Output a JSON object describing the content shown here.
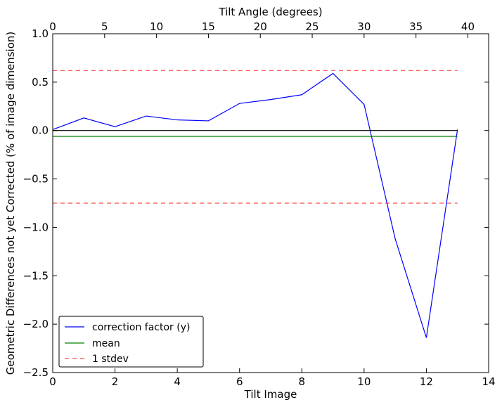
{
  "chart_data": {
    "type": "line",
    "title": "",
    "xlabel": "Tilt Image",
    "ylabel": "Geometric Differences not yet Corrected (% of image dimension)",
    "x2label": "Tilt Angle (degrees)",
    "xlim": [
      0,
      14
    ],
    "ylim": [
      -2.5,
      1.0
    ],
    "x2lim": [
      0,
      42
    ],
    "xticks": [
      "0",
      "2",
      "4",
      "6",
      "8",
      "10",
      "12",
      "14"
    ],
    "yticks": [
      "1.0",
      "0.5",
      "0.0",
      "−0.5",
      "−1.0",
      "−1.5",
      "−2.0",
      "−2.5"
    ],
    "x2ticks": [
      "0",
      "5",
      "10",
      "15",
      "20",
      "25",
      "30",
      "35",
      "40"
    ],
    "grid": false,
    "legend_position": "lower-left",
    "series": [
      {
        "name": "correction factor (y)",
        "color": "#0000ff",
        "style": "solid",
        "x": [
          0,
          1,
          2,
          3,
          4,
          5,
          6,
          7,
          8,
          9,
          10,
          11,
          12,
          13
        ],
        "y": [
          0.01,
          0.13,
          0.04,
          0.15,
          0.11,
          0.1,
          0.28,
          0.32,
          0.37,
          0.59,
          0.27,
          -1.12,
          -2.14,
          0.01
        ]
      },
      {
        "name": "mean",
        "color": "#008000",
        "style": "solid",
        "x": [
          0,
          13
        ],
        "y": [
          -0.06,
          -0.06
        ]
      },
      {
        "name": "1 stdev",
        "color": "#ff0000",
        "style": "dashed",
        "x": [
          0,
          13
        ],
        "y": [
          0.62,
          0.62
        ]
      },
      {
        "name": "",
        "color": "#ff0000",
        "style": "dashed",
        "x": [
          0,
          13
        ],
        "y": [
          -0.75,
          -0.75
        ]
      },
      {
        "name": "",
        "color": "#000000",
        "style": "solid",
        "x": [
          0,
          13
        ],
        "y": [
          0.0,
          0.0
        ]
      }
    ],
    "legend": [
      {
        "label": "correction factor (y)",
        "color": "#0000ff",
        "style": "solid"
      },
      {
        "label": "mean",
        "color": "#008000",
        "style": "solid"
      },
      {
        "label": "1 stdev",
        "color": "#ff0000",
        "style": "dashed"
      }
    ]
  }
}
